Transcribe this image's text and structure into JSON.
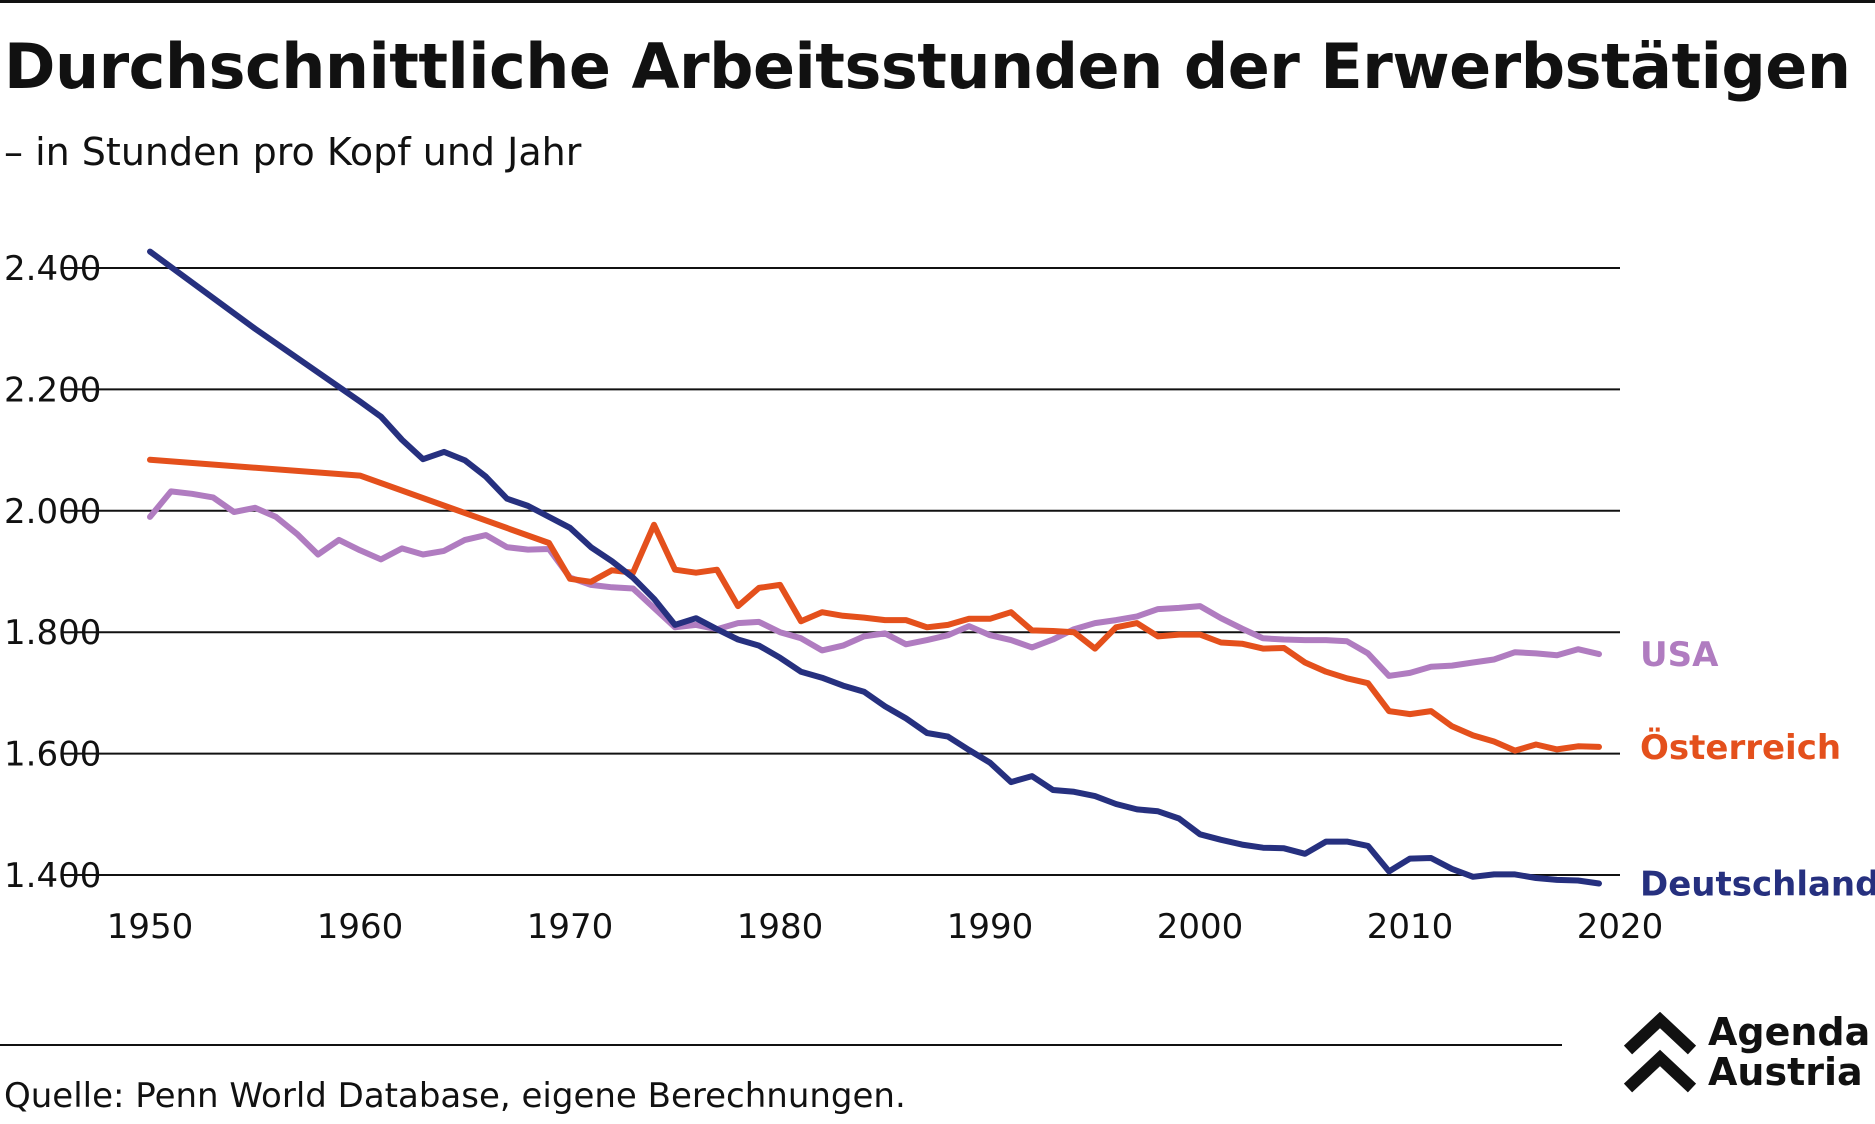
{
  "header": {
    "title": "Durchschnittliche Arbeitsstunden der Erwerbstätigen",
    "subtitle": "– in Stunden pro Kopf und Jahr"
  },
  "footer": {
    "source": "Quelle: Penn World Database, eigene Berechnungen."
  },
  "logo": {
    "line1": "Agenda",
    "line2": "Austria"
  },
  "colors": {
    "usa": "#b07cc0",
    "oesterreich": "#e4501c",
    "deutschland": "#26307f",
    "grid": "#111111"
  },
  "chart_data": {
    "type": "line",
    "title": "Durchschnittliche Arbeitsstunden der Erwerbstätigen",
    "subtitle": "– in Stunden pro Kopf und Jahr",
    "xlim": [
      1950,
      2020
    ],
    "ylim": [
      1400,
      2400
    ],
    "x_ticks": [
      1950,
      1960,
      1970,
      1980,
      1990,
      2000,
      2010,
      2020
    ],
    "x_tick_labels": [
      "1950",
      "1960",
      "1970",
      "1980",
      "1990",
      "2000",
      "2010",
      "2020"
    ],
    "y_ticks": [
      1400,
      1600,
      1800,
      2000,
      2200,
      2400
    ],
    "y_tick_labels": [
      "1.400",
      "1.600",
      "1.800",
      "2.000",
      "2.200",
      "2.400"
    ],
    "grid": "horizontal",
    "legend": "direct labels at right end of lines",
    "series": [
      {
        "name": "USA",
        "color": "#b07cc0",
        "x": [
          1950,
          1951,
          1952,
          1953,
          1954,
          1955,
          1956,
          1957,
          1958,
          1959,
          1960,
          1961,
          1962,
          1963,
          1964,
          1965,
          1966,
          1967,
          1968,
          1969,
          1970,
          1971,
          1972,
          1973,
          1974,
          1975,
          1976,
          1977,
          1978,
          1979,
          1980,
          1981,
          1982,
          1983,
          1984,
          1985,
          1986,
          1987,
          1988,
          1989,
          1990,
          1991,
          1992,
          1993,
          1994,
          1995,
          1996,
          1997,
          1998,
          1999,
          2000,
          2001,
          2002,
          2003,
          2004,
          2005,
          2006,
          2007,
          2008,
          2009,
          2010,
          2011,
          2012,
          2013,
          2014,
          2015,
          2016,
          2017,
          2018,
          2019
        ],
        "values": [
          1990,
          2032,
          2028,
          2022,
          1998,
          2005,
          1990,
          1962,
          1928,
          1952,
          1935,
          1920,
          1938,
          1928,
          1934,
          1952,
          1960,
          1940,
          1936,
          1937,
          1890,
          1878,
          1874,
          1872,
          1840,
          1808,
          1812,
          1805,
          1815,
          1817,
          1800,
          1790,
          1770,
          1778,
          1793,
          1798,
          1780,
          1787,
          1795,
          1810,
          1795,
          1787,
          1775,
          1788,
          1805,
          1815,
          1820,
          1826,
          1838,
          1840,
          1843,
          1823,
          1806,
          1790,
          1788,
          1787,
          1787,
          1785,
          1765,
          1728,
          1733,
          1743,
          1745,
          1750,
          1755,
          1767,
          1765,
          1762,
          1772,
          1764
        ]
      },
      {
        "name": "Österreich",
        "color": "#e4501c",
        "x": [
          1950,
          1960,
          1969,
          1970,
          1971,
          1972,
          1973,
          1974,
          1975,
          1976,
          1977,
          1978,
          1979,
          1980,
          1981,
          1982,
          1983,
          1984,
          1985,
          1986,
          1987,
          1988,
          1989,
          1990,
          1991,
          1992,
          1993,
          1994,
          1995,
          1996,
          1997,
          1998,
          1999,
          2000,
          2001,
          2002,
          2003,
          2004,
          2005,
          2006,
          2007,
          2008,
          2009,
          2010,
          2011,
          2012,
          2013,
          2014,
          2015,
          2016,
          2017,
          2018,
          2019
        ],
        "values": [
          2084,
          2058,
          1947,
          1888,
          1883,
          1902,
          1898,
          1977,
          1903,
          1898,
          1903,
          1843,
          1873,
          1878,
          1818,
          1833,
          1827,
          1824,
          1820,
          1820,
          1808,
          1812,
          1822,
          1822,
          1833,
          1803,
          1802,
          1800,
          1773,
          1808,
          1815,
          1793,
          1796,
          1796,
          1783,
          1781,
          1773,
          1774,
          1750,
          1735,
          1724,
          1716,
          1670,
          1665,
          1670,
          1645,
          1630,
          1620,
          1605,
          1615,
          1607,
          1612,
          1611
        ]
      },
      {
        "name": "Deutschland",
        "color": "#26307f",
        "x": [
          1950,
          1955,
          1960,
          1961,
          1962,
          1963,
          1964,
          1965,
          1966,
          1967,
          1968,
          1969,
          1970,
          1971,
          1972,
          1973,
          1974,
          1975,
          1976,
          1977,
          1978,
          1979,
          1980,
          1981,
          1982,
          1983,
          1984,
          1985,
          1986,
          1987,
          1988,
          1989,
          1990,
          1991,
          1992,
          1993,
          1994,
          1995,
          1996,
          1997,
          1998,
          1999,
          2000,
          2001,
          2002,
          2003,
          2004,
          2005,
          2006,
          2007,
          2008,
          2009,
          2010,
          2011,
          2012,
          2013,
          2014,
          2015,
          2016,
          2017,
          2018,
          2019
        ],
        "values": [
          2427,
          2300,
          2180,
          2155,
          2117,
          2085,
          2097,
          2083,
          2056,
          2020,
          2008,
          1990,
          1972,
          1940,
          1917,
          1890,
          1855,
          1812,
          1823,
          1805,
          1788,
          1778,
          1758,
          1735,
          1725,
          1712,
          1702,
          1678,
          1658,
          1634,
          1628,
          1606,
          1585,
          1553,
          1563,
          1540,
          1537,
          1530,
          1517,
          1508,
          1505,
          1493,
          1467,
          1458,
          1450,
          1445,
          1444,
          1435,
          1455,
          1455,
          1448,
          1406,
          1427,
          1428,
          1410,
          1397,
          1401,
          1401,
          1395,
          1392,
          1391,
          1386
        ]
      }
    ]
  }
}
